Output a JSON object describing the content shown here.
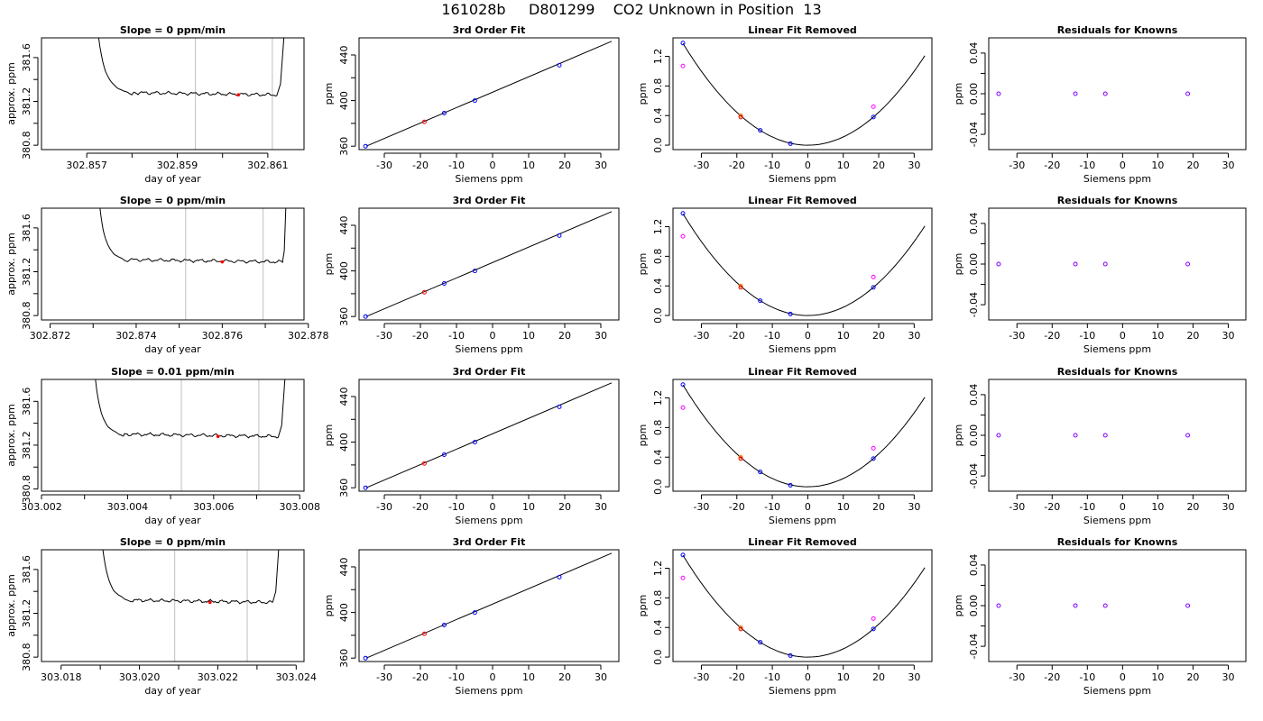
{
  "title": "161028b     D801299    CO2 Unknown in Position  13",
  "colors": {
    "curve": "#000000",
    "frame": "#000000",
    "grid_vline": "#bebebe",
    "blue": "#0000ff",
    "red": "#ff0000",
    "orange": "#ff7f00",
    "magenta": "#ff00ff",
    "purple": "#8000ff"
  },
  "chart_data": [
    {
      "type": "line",
      "panel": "trace",
      "row": 0,
      "title": "Slope =  0  ppm/min",
      "xlabel": "day of year",
      "ylabel": "approx. ppm",
      "xlim": [
        302.856,
        302.8618
      ],
      "ylim": [
        380.76,
        381.78
      ],
      "xticks": [
        302.857,
        302.858,
        302.859,
        302.86,
        302.861
      ],
      "xticklabels": [
        "302.857",
        "",
        "302.859",
        "",
        "302.861"
      ],
      "yticks": [
        380.8,
        381.0,
        381.2,
        381.4,
        381.6
      ],
      "yticklabels": [
        "380.8",
        "",
        "381.2",
        "",
        "381.6"
      ],
      "x_start": 302.8572,
      "x_plat_start": 302.858,
      "x_plat_end": 302.8612,
      "x_end": 302.8614,
      "plateau": 381.26,
      "vlines": [
        302.8594,
        302.8611
      ],
      "marker": {
        "x": 302.86035,
        "y": 381.26
      }
    },
    {
      "type": "line",
      "panel": "trace",
      "row": 1,
      "title": "Slope =  0  ppm/min",
      "xlabel": "day of year",
      "ylabel": "approx. ppm",
      "xlim": [
        302.8718,
        302.8779
      ],
      "ylim": [
        380.76,
        381.78
      ],
      "xticks": [
        302.872,
        302.873,
        302.874,
        302.875,
        302.876,
        302.877,
        302.878
      ],
      "xticklabels": [
        "302.872",
        "",
        "302.874",
        "",
        "302.876",
        "",
        "302.878"
      ],
      "yticks": [
        380.8,
        381.0,
        381.2,
        381.4,
        381.6
      ],
      "yticklabels": [
        "380.8",
        "",
        "381.2",
        "",
        "381.6"
      ],
      "x_start": 302.8731,
      "x_plat_start": 302.8738,
      "x_plat_end": 302.8774,
      "x_end": 302.8775,
      "plateau": 381.29,
      "vlines": [
        302.87515,
        302.87695
      ],
      "marker": {
        "x": 302.876,
        "y": 381.29
      }
    },
    {
      "type": "line",
      "panel": "trace",
      "row": 2,
      "title": "Slope =  0.01  ppm/min",
      "xlabel": "day of year",
      "ylabel": "approx. ppm",
      "xlim": [
        303.002,
        303.0081
      ],
      "ylim": [
        380.78,
        381.8
      ],
      "xticks": [
        303.002,
        303.003,
        303.004,
        303.005,
        303.006,
        303.007,
        303.008
      ],
      "xticklabels": [
        "303.002",
        "",
        "303.004",
        "",
        "303.006",
        "",
        "303.008"
      ],
      "yticks": [
        380.8,
        381.0,
        381.2,
        381.4,
        381.6
      ],
      "yticklabels": [
        "380.8",
        "",
        "381.2",
        "",
        "381.6"
      ],
      "x_start": 303.0032,
      "x_plat_start": 303.0039,
      "x_plat_end": 303.0075,
      "x_end": 303.0077,
      "plateau": 381.28,
      "vlines": [
        303.00525,
        303.00705
      ],
      "marker": {
        "x": 303.0061,
        "y": 381.28
      }
    },
    {
      "type": "line",
      "panel": "trace",
      "row": 3,
      "title": "Slope =  0  ppm/min",
      "xlabel": "day of year",
      "ylabel": "approx. ppm",
      "xlim": [
        303.0175,
        303.0242
      ],
      "ylim": [
        380.76,
        381.78
      ],
      "xticks": [
        303.018,
        303.019,
        303.02,
        303.021,
        303.022,
        303.023,
        303.024
      ],
      "xticklabels": [
        "303.018",
        "",
        "303.020",
        "",
        "303.022",
        "",
        "303.024"
      ],
      "yticks": [
        380.8,
        381.0,
        381.2,
        381.4,
        381.6
      ],
      "yticklabels": [
        "380.8",
        "",
        "381.2",
        "",
        "381.6"
      ],
      "x_start": 303.019,
      "x_plat_start": 303.0198,
      "x_plat_end": 303.0234,
      "x_end": 303.0236,
      "plateau": 381.3,
      "vlines": [
        303.0209,
        303.02275
      ],
      "marker": {
        "x": 303.0218,
        "y": 381.3
      }
    },
    {
      "type": "scatter",
      "panel": "fit",
      "rows": [
        0,
        1,
        2,
        3
      ],
      "title": "3rd Order Fit",
      "xlabel": "Siemens ppm",
      "ylabel": "ppm",
      "xlim": [
        -37,
        35
      ],
      "ylim": [
        357,
        455
      ],
      "xticks": [
        -30,
        -20,
        -10,
        0,
        10,
        20,
        30
      ],
      "yticks": [
        360,
        380,
        400,
        420,
        440
      ],
      "yticklabels": [
        "360",
        "",
        "400",
        "",
        "440"
      ],
      "line": {
        "x": [
          -35,
          33
        ],
        "y": [
          360,
          452
        ]
      },
      "points": [
        {
          "x": -35.2,
          "y": 360,
          "color": "blue"
        },
        {
          "x": -18.9,
          "y": 381.3,
          "color": "red"
        },
        {
          "x": -13.4,
          "y": 389,
          "color": "blue"
        },
        {
          "x": -4.9,
          "y": 400,
          "color": "blue"
        },
        {
          "x": 18.5,
          "y": 431,
          "color": "blue"
        }
      ]
    },
    {
      "type": "scatter",
      "panel": "linres",
      "rows": [
        0,
        1,
        2,
        3
      ],
      "title": "Linear Fit Removed",
      "xlabel": "Siemens ppm",
      "ylabel": "ppm",
      "xlim": [
        -38,
        35
      ],
      "ylim": [
        -0.06,
        1.45
      ],
      "xticks": [
        -30,
        -20,
        -10,
        0,
        10,
        20,
        30
      ],
      "yticks": [
        0.0,
        0.4,
        0.8,
        1.2
      ],
      "yticklabels": [
        "0.0",
        "0.4",
        "0.8",
        "1.2"
      ],
      "curve_coef": 0.00111,
      "curve_range": [
        -35.2,
        33
      ],
      "points": [
        {
          "x": -35.2,
          "y": 1.38,
          "color": "blue"
        },
        {
          "x": -35.2,
          "y": 1.07,
          "color": "magenta"
        },
        {
          "x": -18.9,
          "y": 0.4,
          "color": "orange"
        },
        {
          "x": -18.9,
          "y": 0.38,
          "color": "red"
        },
        {
          "x": -13.4,
          "y": 0.2,
          "color": "blue"
        },
        {
          "x": -4.9,
          "y": 0.02,
          "color": "blue"
        },
        {
          "x": 18.5,
          "y": 0.38,
          "color": "blue"
        },
        {
          "x": 18.5,
          "y": 0.52,
          "color": "magenta"
        }
      ]
    },
    {
      "type": "scatter",
      "panel": "resid",
      "rows": [
        0,
        1,
        2,
        3
      ],
      "title": "Residuals for Knowns",
      "xlabel": "Siemens ppm",
      "ylabel": "ppm",
      "xlim": [
        -38,
        35
      ],
      "ylim": [
        -0.055,
        0.055
      ],
      "xticks": [
        -30,
        -20,
        -10,
        0,
        10,
        20,
        30
      ],
      "yticks": [
        -0.04,
        -0.02,
        0.0,
        0.02,
        0.04
      ],
      "yticklabels": [
        "-0.04",
        "",
        "0.00",
        "",
        "0.04"
      ],
      "points": [
        {
          "x": -35.2,
          "y": 0,
          "color": "purple"
        },
        {
          "x": -13.4,
          "y": 0,
          "color": "purple"
        },
        {
          "x": -4.9,
          "y": 0,
          "color": "purple"
        },
        {
          "x": 18.5,
          "y": 0,
          "color": "purple"
        }
      ]
    }
  ]
}
